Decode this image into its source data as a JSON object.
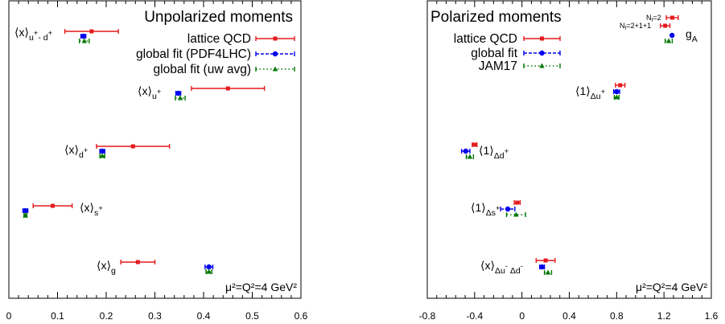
{
  "chart_data": [
    {
      "type": "scatter",
      "title": "Unpolarized moments",
      "scale_label": "μ²=Q²=4 GeV²",
      "xlim": [
        0,
        0.6
      ],
      "xticks": [
        "0",
        "0.1",
        "0.2",
        "0.3",
        "0.4",
        "0.5",
        "0.6"
      ],
      "legend_position": "top-right",
      "series": [
        {
          "name": "lattice QCD",
          "color": "#e41a1c",
          "style": "solid",
          "marker": "square"
        },
        {
          "name": "global fit (PDF4LHC)",
          "color": "#0000ee",
          "style": "dashed",
          "marker": "circle"
        },
        {
          "name": "global fit (uw avg)",
          "color": "#007700",
          "style": "dotted",
          "marker": "triangle"
        }
      ],
      "observables": [
        {
          "label": "⟨x⟩",
          "sub": "u",
          "subsup": "+",
          "sub2": "- d",
          "sub2sup": "+",
          "points": [
            {
              "series": 0,
              "value": 0.17,
              "err_low": 0.115,
              "err_high": 0.225
            },
            {
              "series": 1,
              "value": 0.153,
              "err_low": 0.148,
              "err_high": 0.158
            },
            {
              "series": 2,
              "value": 0.155,
              "err_low": 0.145,
              "err_high": 0.165
            }
          ]
        },
        {
          "label": "⟨x⟩",
          "sub": "u",
          "subsup": "+",
          "points": [
            {
              "series": 0,
              "value": 0.45,
              "err_low": 0.375,
              "err_high": 0.525
            },
            {
              "series": 1,
              "value": 0.348,
              "err_low": 0.343,
              "err_high": 0.353
            },
            {
              "series": 2,
              "value": 0.352,
              "err_low": 0.342,
              "err_high": 0.362
            }
          ]
        },
        {
          "label": "⟨x⟩",
          "sub": "d",
          "subsup": "+",
          "points": [
            {
              "series": 0,
              "value": 0.255,
              "err_low": 0.18,
              "err_high": 0.33
            },
            {
              "series": 1,
              "value": 0.192,
              "err_low": 0.187,
              "err_high": 0.197
            },
            {
              "series": 2,
              "value": 0.192,
              "err_low": 0.187,
              "err_high": 0.197
            }
          ]
        },
        {
          "label": "⟨x⟩",
          "sub": "s",
          "subsup": "+",
          "points": [
            {
              "series": 0,
              "value": 0.09,
              "err_low": 0.05,
              "err_high": 0.13
            },
            {
              "series": 1,
              "value": 0.034,
              "err_low": 0.029,
              "err_high": 0.039
            },
            {
              "series": 2,
              "value": 0.034,
              "err_low": 0.031,
              "err_high": 0.037
            }
          ]
        },
        {
          "label": "⟨x⟩",
          "sub": "g",
          "subsup": "",
          "points": [
            {
              "series": 0,
              "value": 0.265,
              "err_low": 0.23,
              "err_high": 0.3
            },
            {
              "series": 1,
              "value": 0.411,
              "err_low": 0.403,
              "err_high": 0.419
            },
            {
              "series": 2,
              "value": 0.411,
              "err_low": 0.405,
              "err_high": 0.417
            }
          ]
        }
      ]
    },
    {
      "type": "scatter",
      "title": "Polarized moments",
      "scale_label": "μ²=Q²=4 GeV²",
      "xlim": [
        -0.8,
        1.6
      ],
      "xticks": [
        "-0.8",
        "-0.4",
        "0",
        "0.4",
        "0.8",
        "1.2",
        "1.6"
      ],
      "legend_position": "top-left",
      "series": [
        {
          "name": "lattice QCD",
          "color": "#e41a1c",
          "style": "solid",
          "marker": "square"
        },
        {
          "name": "global fit",
          "color": "#0000ee",
          "style": "dashed",
          "marker": "circle"
        },
        {
          "name": "JAM17",
          "color": "#007700",
          "style": "dotted",
          "marker": "triangle"
        }
      ],
      "ga_labels": {
        "nf2": "N",
        "nf2_sub": "f",
        "nf2_tail": "=2",
        "nf2111": "N",
        "nf2111_sub": "f",
        "nf2111_tail": "=2+1+1"
      },
      "observables": [
        {
          "label": "g",
          "sub": "A",
          "subsup": "",
          "points": [
            {
              "series": 0,
              "value": 1.27,
              "err_low": 1.22,
              "err_high": 1.32
            },
            {
              "series": 0,
              "value": 1.21,
              "err_low": 1.17,
              "err_high": 1.25
            },
            {
              "series": 1,
              "value": 1.268,
              "err_low": 1.265,
              "err_high": 1.271
            },
            {
              "series": 2,
              "value": 1.24,
              "err_low": 1.21,
              "err_high": 1.27
            }
          ]
        },
        {
          "label": "⟨1⟩",
          "sub": "Δu",
          "subsup": "+",
          "points": [
            {
              "series": 0,
              "value": 0.83,
              "err_low": 0.79,
              "err_high": 0.87
            },
            {
              "series": 1,
              "value": 0.8,
              "err_low": 0.775,
              "err_high": 0.825
            },
            {
              "series": 2,
              "value": 0.8,
              "err_low": 0.78,
              "err_high": 0.82
            }
          ]
        },
        {
          "label": "⟨1⟩",
          "sub": "Δd",
          "subsup": "+",
          "points": [
            {
              "series": 0,
              "value": -0.4,
              "err_low": -0.42,
              "err_high": -0.38
            },
            {
              "series": 1,
              "value": -0.475,
              "err_low": -0.51,
              "err_high": -0.44
            },
            {
              "series": 2,
              "value": -0.44,
              "err_low": -0.47,
              "err_high": -0.41
            }
          ]
        },
        {
          "label": "⟨1⟩",
          "sub": "Δs",
          "subsup": "+",
          "points": [
            {
              "series": 0,
              "value": -0.04,
              "err_low": -0.065,
              "err_high": -0.015
            },
            {
              "series": 1,
              "value": -0.12,
              "err_low": -0.18,
              "err_high": -0.06
            },
            {
              "series": 2,
              "value": -0.05,
              "err_low": -0.13,
              "err_high": 0.03
            }
          ]
        },
        {
          "label": "⟨x⟩",
          "sub": "Δu",
          "subsup": "-",
          "sub2": " Δd",
          "sub2sup": "-",
          "points": [
            {
              "series": 0,
              "value": 0.2,
              "err_low": 0.12,
              "err_high": 0.28
            },
            {
              "series": 1,
              "value": 0.17,
              "err_low": 0.15,
              "err_high": 0.19
            },
            {
              "series": 2,
              "value": 0.22,
              "err_low": 0.19,
              "err_high": 0.25
            }
          ]
        }
      ]
    }
  ]
}
